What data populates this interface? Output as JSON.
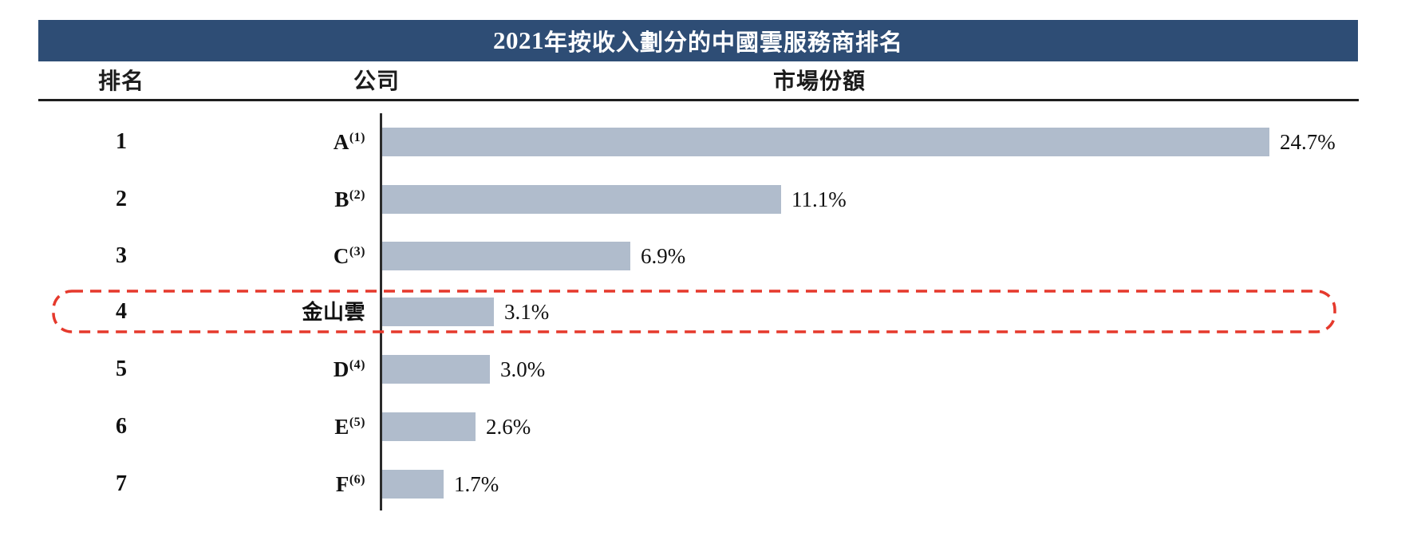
{
  "header": {
    "title_year": "2021",
    "title_text": "年按收入劃分的中國雲服務商排名"
  },
  "columns": {
    "rank": "排名",
    "company": "公司",
    "market_share": "市場份額"
  },
  "chart_data": {
    "type": "bar",
    "orientation": "horizontal",
    "title": "2021年按收入劃分的中國雲服務商排名",
    "value_axis_label": "市場份額",
    "xlim": [
      0,
      25
    ],
    "grid": false,
    "legend": "none",
    "bar_color": "#B0BCCC",
    "highlight_color": "#E5392C",
    "banner_color": "#2E4D75",
    "rows": [
      {
        "rank": "1",
        "company": "A",
        "footnote": "(1)",
        "share_label": "24.7%",
        "value": 24.7,
        "highlighted": false
      },
      {
        "rank": "2",
        "company": "B",
        "footnote": "(2)",
        "share_label": "11.1%",
        "value": 11.1,
        "highlighted": false
      },
      {
        "rank": "3",
        "company": "C",
        "footnote": "(3)",
        "share_label": "6.9%",
        "value": 6.9,
        "highlighted": false
      },
      {
        "rank": "4",
        "company": "金山雲",
        "footnote": "",
        "share_label": "3.1%",
        "value": 3.1,
        "highlighted": true
      },
      {
        "rank": "5",
        "company": "D",
        "footnote": "(4)",
        "share_label": "3.0%",
        "value": 3.0,
        "highlighted": false
      },
      {
        "rank": "6",
        "company": "E",
        "footnote": "(5)",
        "share_label": "2.6%",
        "value": 2.6,
        "highlighted": false
      },
      {
        "rank": "7",
        "company": "F",
        "footnote": "(6)",
        "share_label": "1.7%",
        "value": 1.7,
        "highlighted": false
      }
    ]
  }
}
